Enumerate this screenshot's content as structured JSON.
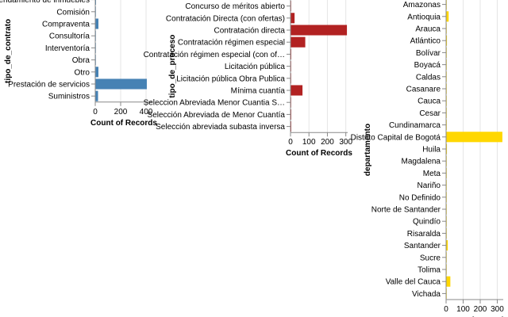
{
  "chart_data": [
    {
      "type": "bar",
      "orientation": "horizontal",
      "xlabel": "Count of Records",
      "ylabel": "tipo_de_contrato",
      "xlim": [
        0,
        450
      ],
      "xticks": [
        0,
        200,
        400
      ],
      "grid": true,
      "color": "#4682b4",
      "categories": [
        "Arrendamiento de inmuebles",
        "Comisión",
        "Compraventa",
        "Consultoría",
        "Interventoría",
        "Obra",
        "Otro",
        "Prestación de servicios",
        "Suministros"
      ],
      "values": [
        6,
        1,
        25,
        1,
        1,
        1,
        25,
        406,
        22
      ]
    },
    {
      "type": "bar",
      "orientation": "horizontal",
      "xlabel": "Count of Records",
      "ylabel": "tipo_de_proceso",
      "xlim": [
        0,
        310
      ],
      "xticks": [
        0,
        100,
        200,
        300
      ],
      "grid": true,
      "color": "#b22222",
      "categories": [
        "Concurso de méritos abierto",
        "Contratación Directa (con ofertas)",
        "Contratación directa",
        "Contratación régimen especial",
        "Contratación régimen especial (con of…",
        "Licitación pública",
        "Licitación pública Obra Publica",
        "Mínima cuantía",
        "Seleccion Abreviada Menor Cuantia S…",
        "Selección Abreviada de Menor Cuantía",
        "Selección abreviada subasta inversa"
      ],
      "values": [
        1,
        22,
        306,
        80,
        4,
        1,
        1,
        65,
        2,
        4,
        4
      ]
    },
    {
      "type": "bar",
      "orientation": "horizontal",
      "xlabel": "Count of Records",
      "ylabel": "departamento",
      "xlim": [
        0,
        335
      ],
      "xticks": [
        0,
        100,
        200,
        300
      ],
      "grid": true,
      "color": "#ffd700",
      "categories": [
        "Amazonas",
        "Antioquia",
        "Arauca",
        "Atlántico",
        "Bolívar",
        "Boyacá",
        "Caldas",
        "Casanare",
        "Cauca",
        "Cesar",
        "Cundinamarca",
        "Distrito Capital de Bogotá",
        "Huila",
        "Magdalena",
        "Meta",
        "Nariño",
        "No Definido",
        "Norte de Santander",
        "Quindío",
        "Risaralda",
        "Santander",
        "Sucre",
        "Tolima",
        "Valle del Cauca",
        "Vichada"
      ],
      "values": [
        1,
        15,
        1,
        5,
        1,
        1,
        3,
        1,
        1,
        1,
        4,
        330,
        5,
        1,
        1,
        1,
        1,
        1,
        1,
        1,
        10,
        1,
        1,
        25,
        1
      ]
    }
  ]
}
